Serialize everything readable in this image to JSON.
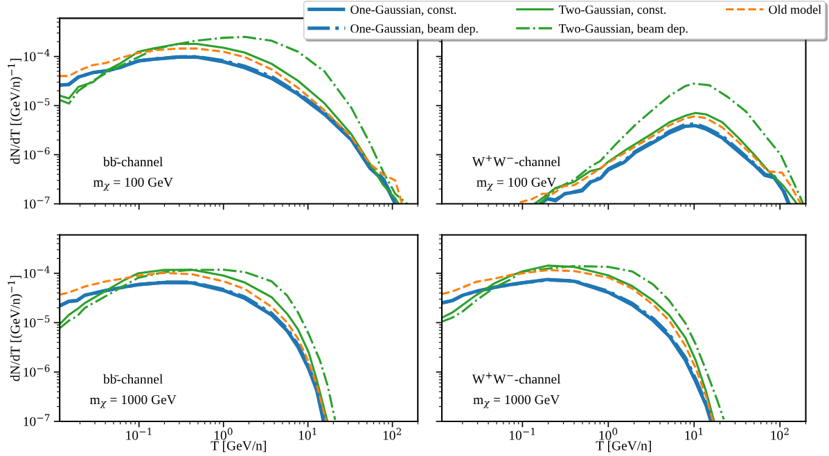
{
  "chart_data": [
    {
      "type": "line",
      "log": "xy",
      "xlim": [
        0.0115,
        200
      ],
      "ylim": [
        1e-07,
        0.0006
      ],
      "tick_labels": "y",
      "legend": "top right",
      "ylabel": "dN/dT [(GeV/n)$^{−1}$]",
      "xticks": [
        {
          "value": 0.1,
          "label": null
        },
        {
          "value": 1,
          "label": null
        },
        {
          "value": 10,
          "label": null
        },
        {
          "value": 100,
          "label": null
        }
      ],
      "yticks": [
        {
          "value": 1e-07,
          "label": "10$^{−7}$"
        },
        {
          "value": 1e-06,
          "label": "10$^{−6}$"
        },
        {
          "value": 1e-05,
          "label": "10$^{−5}$"
        },
        {
          "value": 0.0001,
          "label": "10$^{−4}$"
        }
      ],
      "annotations": [
        "bb̄-channel",
        "m$_{χ}$ = 100 GeV"
      ],
      "series": [
        {
          "name": "One-Gaussian, const.",
          "color": "#1f77b4",
          "line_style": "solid",
          "x": [
            0.0115,
            0.0148,
            0.0191,
            0.0285,
            0.0409,
            0.0589,
            0.0787,
            0.098,
            0.151,
            0.291,
            0.484,
            1.0,
            1.79,
            3.7,
            7.64,
            15.8,
            32.7,
            54.3,
            78.2,
            108
          ],
          "values": [
            2.6e-05,
            2.7e-05,
            3.8e-05,
            4.7e-05,
            5.1e-05,
            5.9e-05,
            7.1e-05,
            8.1e-05,
            8.8e-05,
            9.7e-05,
            9.7e-05,
            7.8e-05,
            5.9e-05,
            3.6e-05,
            1.7e-05,
            6.6e-06,
            2e-06,
            5.3e-07,
            3e-07,
            1e-07
          ]
        },
        {
          "name": "One-Gaussian, beam dep.",
          "color": "#1f77b4",
          "line_style": "dashdot",
          "x": [
            0.0115,
            0.0148,
            0.0191,
            0.0285,
            0.0409,
            0.0589,
            0.0787,
            0.098,
            0.151,
            0.291,
            0.484,
            1.0,
            1.79,
            3.7,
            7.64,
            15.8,
            32.7,
            54.3,
            78.2,
            110
          ],
          "values": [
            2.6e-05,
            2.7e-05,
            3.8e-05,
            4.7e-05,
            5.1e-05,
            5.9e-05,
            7.1e-05,
            8.1e-05,
            8.9e-05,
            9.8e-05,
            9.9e-05,
            8.2e-05,
            6.3e-05,
            3.9e-05,
            1.8e-05,
            7.1e-06,
            2.2e-06,
            5.8e-07,
            3.2e-07,
            1e-07
          ]
        },
        {
          "name": "Two-Gaussian, const.",
          "color": "#2ca02c",
          "line_style": "solid",
          "x": [
            0.0115,
            0.0148,
            0.0191,
            0.0285,
            0.0409,
            0.0589,
            0.098,
            0.151,
            0.291,
            0.484,
            1.0,
            1.79,
            3.7,
            7.64,
            15.8,
            32.7,
            54.3,
            78.2,
            108,
            118
          ],
          "values": [
            1.6e-05,
            1.4e-05,
            2.4e-05,
            3e-05,
            5.1e-05,
            7.1e-05,
            0.000125,
            0.000147,
            0.00018,
            0.00018,
            0.00015,
            0.00012,
            7.1e-05,
            3.2e-05,
            1.1e-05,
            2.6e-06,
            6.5e-07,
            2.4e-07,
            1.3e-07,
            1e-07
          ]
        },
        {
          "name": "Two-Gaussian, beam dep.",
          "color": "#2ca02c",
          "line_style": "dashdot",
          "x": [
            0.0115,
            0.0148,
            0.0191,
            0.0285,
            0.0409,
            0.0589,
            0.098,
            0.151,
            0.291,
            0.484,
            1.0,
            1.79,
            3.7,
            7.64,
            15.8,
            32.7,
            54.3,
            78.2,
            108,
            150
          ],
          "values": [
            1.3e-05,
            1.1e-05,
            2e-05,
            3.2e-05,
            4.6e-05,
            6.3e-05,
            9.7e-05,
            0.00014,
            0.00018,
            0.00021,
            0.00024,
            0.00025,
            0.00021,
            0.000125,
            4.9e-05,
            9e-06,
            1.7e-06,
            4.4e-07,
            1.6e-07,
            1e-07
          ]
        },
        {
          "name": "Old model",
          "color": "#ff7f0e",
          "line_style": "dashed",
          "x": [
            0.0115,
            0.0148,
            0.0191,
            0.0285,
            0.0409,
            0.0589,
            0.098,
            0.151,
            0.291,
            0.484,
            1.0,
            1.79,
            3.7,
            7.64,
            15.8,
            32.7,
            54.3,
            78.2,
            108,
            130
          ],
          "values": [
            4e-05,
            4e-05,
            5.1e-05,
            6.7e-05,
            7.4e-05,
            9.2e-05,
            0.000118,
            0.000133,
            0.000145,
            0.000145,
            0.000125,
            9.7e-05,
            5.5e-05,
            2.3e-05,
            7.9e-06,
            2.3e-06,
            6.5e-07,
            3.9e-07,
            3e-07,
            1e-07
          ]
        }
      ]
    },
    {
      "type": "line",
      "log": "xy",
      "xlim": [
        0.0115,
        200
      ],
      "ylim": [
        1e-07,
        0.0006
      ],
      "tick_labels": false,
      "xticks": [
        {
          "value": 0.1,
          "label": null
        },
        {
          "value": 1,
          "label": null
        },
        {
          "value": 10,
          "label": null
        },
        {
          "value": 100,
          "label": null
        }
      ],
      "yticks": [
        {
          "value": 1e-07,
          "label": null
        },
        {
          "value": 1e-06,
          "label": null
        },
        {
          "value": 1e-05,
          "label": null
        },
        {
          "value": 0.0001,
          "label": null
        }
      ],
      "annotations": [
        "W$^{+}$W$^{−}$-channel",
        "m$_{χ}$ = 100 GeV"
      ],
      "series": [
        {
          "color": "#1f77b4",
          "line_style": "solid",
          "x": [
            0.159,
            0.196,
            0.243,
            0.311,
            0.495,
            0.63,
            0.81,
            1.0,
            1.54,
            2.05,
            3.37,
            5.2,
            7.9,
            10.4,
            13.9,
            21.3,
            32.9,
            50.1,
            66.7,
            85.7,
            110,
            126
          ],
          "values": [
            1e-07,
            1.27e-07,
            1.16e-07,
            1.6e-07,
            1.84e-07,
            2.8e-07,
            3.3e-07,
            4.9e-07,
            7.1e-07,
            1.1e-06,
            1.8e-06,
            2.8e-06,
            3.8e-06,
            3.9e-06,
            3.3e-06,
            2.2e-06,
            1.16e-06,
            6.2e-07,
            3.8e-07,
            3.4e-07,
            1.8e-07,
            1e-07
          ]
        },
        {
          "color": "#1f77b4",
          "line_style": "dashdot",
          "x": [
            0.159,
            0.196,
            0.243,
            0.311,
            0.495,
            0.63,
            0.81,
            1.0,
            1.54,
            2.05,
            3.37,
            5.2,
            7.9,
            10.4,
            13.9,
            21.3,
            32.9,
            50.1,
            66.7,
            85.7,
            110,
            128
          ],
          "values": [
            1e-07,
            1.27e-07,
            1.2e-07,
            1.6e-07,
            1.9e-07,
            2.9e-07,
            3.4e-07,
            5.1e-07,
            7.5e-07,
            1.15e-06,
            1.9e-06,
            3e-06,
            4.1e-06,
            4.2e-06,
            3.5e-06,
            2.4e-06,
            1.25e-06,
            6.6e-07,
            4e-07,
            3.6e-07,
            1.9e-07,
            1e-07
          ]
        },
        {
          "color": "#2ca02c",
          "line_style": "solid",
          "x": [
            0.138,
            0.17,
            0.243,
            0.4,
            0.61,
            0.81,
            1.0,
            1.65,
            3.37,
            5.2,
            7.9,
            10.4,
            13.9,
            21.3,
            32.9,
            50.1,
            71.5,
            110,
            158
          ],
          "values": [
            1e-07,
            1.3e-07,
            2.1e-07,
            2.8e-07,
            4.6e-07,
            5.2e-07,
            7.2e-07,
            1.3e-06,
            2.8e-06,
            4.6e-06,
            6.2e-06,
            7.1e-06,
            6.6e-06,
            4.6e-06,
            2.2e-06,
            1e-06,
            4.9e-07,
            2.3e-07,
            1e-07
          ]
        },
        {
          "color": "#2ca02c",
          "line_style": "dashdot",
          "x": [
            0.159,
            0.243,
            0.4,
            0.61,
            0.81,
            1.25,
            2.05,
            3.37,
            5.2,
            7.9,
            10,
            15,
            24.6,
            40.5,
            66.7,
            102,
            146,
            187
          ],
          "values": [
            1e-07,
            2e-07,
            3.1e-07,
            5.6e-07,
            7.5e-07,
            1.7e-06,
            4e-06,
            8.5e-06,
            1.6e-05,
            2.5e-05,
            2.8e-05,
            2.6e-05,
            1.5e-05,
            7.5e-06,
            2.5e-06,
            1e-06,
            2.6e-07,
            1e-07
          ]
        },
        {
          "color": "#ff7f0e",
          "line_style": "dashed",
          "x": [
            0.093,
            0.128,
            0.17,
            0.226,
            0.3,
            0.4,
            0.61,
            1.0,
            1.65,
            3.37,
            5.2,
            7.9,
            10.4,
            13.9,
            21.3,
            32.9,
            50.1,
            71.5,
            106,
            136,
            175
          ],
          "values": [
            1.07e-07,
            1.24e-07,
            1.6e-07,
            1.6e-07,
            2.3e-07,
            2.4e-07,
            3.8e-07,
            6.9e-07,
            1.16e-06,
            2.45e-06,
            4e-06,
            5.5e-06,
            6.1e-06,
            5.5e-06,
            3.6e-06,
            1.8e-06,
            9e-07,
            4.6e-07,
            4.3e-07,
            2.2e-07,
            1e-07
          ]
        }
      ]
    },
    {
      "type": "line",
      "log": "xy",
      "xlim": [
        0.0115,
        200
      ],
      "ylim": [
        1e-07,
        0.0006
      ],
      "xlabel": "T [GeV/n]",
      "ylabel": "dN/dT [(GeV/n)$^{−1}$]",
      "xticks": [
        {
          "value": 0.1,
          "label": "10$^{−1}$"
        },
        {
          "value": 1,
          "label": "10$^{0}$"
        },
        {
          "value": 10,
          "label": "10$^{1}$"
        },
        {
          "value": 100,
          "label": "10$^{2}$"
        }
      ],
      "yticks": [
        {
          "value": 1e-07,
          "label": "10$^{−7}$"
        },
        {
          "value": 1e-06,
          "label": "10$^{−6}$"
        },
        {
          "value": 1e-05,
          "label": "10$^{−5}$"
        },
        {
          "value": 0.0001,
          "label": "10$^{−4}$"
        }
      ],
      "annotations": [
        "bb̄-channel",
        "m$_{χ}$ = 1000 GeV"
      ],
      "series": [
        {
          "color": "#1f77b4",
          "line_style": "solid",
          "x": [
            0.0115,
            0.0148,
            0.0184,
            0.0229,
            0.041,
            0.068,
            0.098,
            0.2,
            0.42,
            1.0,
            1.79,
            3.7,
            5.7,
            7.64,
            10.2,
            12.7,
            15.3
          ],
          "values": [
            2.2e-05,
            2.7e-05,
            2.8e-05,
            3.6e-05,
            4.5e-05,
            5.3e-05,
            5.9e-05,
            6.5e-05,
            6.4e-05,
            4.5e-05,
            3.1e-05,
            1.44e-05,
            6.8e-06,
            3.2e-06,
            1.17e-06,
            4.3e-07,
            1e-07
          ]
        },
        {
          "color": "#1f77b4",
          "line_style": "dashdot",
          "x": [
            0.0115,
            0.0148,
            0.0184,
            0.0229,
            0.041,
            0.068,
            0.098,
            0.2,
            0.42,
            1.0,
            1.79,
            3.7,
            5.7,
            7.64,
            10.2,
            12.7,
            15.6
          ],
          "values": [
            2.2e-05,
            2.7e-05,
            2.8e-05,
            3.6e-05,
            4.5e-05,
            5.3e-05,
            5.9e-05,
            6.6e-05,
            6.6e-05,
            4.7e-05,
            3.3e-05,
            1.55e-05,
            7.4e-06,
            3.5e-06,
            1.3e-06,
            4.8e-07,
            1e-07
          ]
        },
        {
          "color": "#2ca02c",
          "line_style": "solid",
          "x": [
            0.0115,
            0.0148,
            0.0184,
            0.0229,
            0.041,
            0.068,
            0.098,
            0.2,
            0.42,
            1.0,
            1.79,
            3.7,
            5.7,
            7.64,
            10.2,
            12.7,
            17.0
          ],
          "values": [
            9.3e-06,
            1.44e-05,
            1.86e-05,
            2.5e-05,
            4.5e-05,
            7.4e-05,
            0.0001,
            0.000117,
            0.000118,
            9e-05,
            6.5e-05,
            3.3e-05,
            1.5e-05,
            7.3e-06,
            2.5e-06,
            7e-07,
            1e-07
          ]
        },
        {
          "color": "#2ca02c",
          "line_style": "dashdot",
          "x": [
            0.0115,
            0.0148,
            0.0184,
            0.0229,
            0.041,
            0.068,
            0.098,
            0.2,
            0.42,
            1.0,
            1.79,
            3.7,
            5.7,
            7.64,
            10.2,
            13.9,
            17.0,
            21.0
          ],
          "values": [
            7.7e-06,
            1.1e-05,
            1.34e-05,
            2e-05,
            3.5e-05,
            5.7e-05,
            8.1e-05,
            0.000106,
            0.000117,
            0.000118,
            0.000106,
            6.9e-05,
            3.5e-05,
            1.6e-05,
            5.9e-06,
            1.7e-06,
            5.5e-07,
            1.07e-07
          ]
        },
        {
          "color": "#ff7f0e",
          "line_style": "dashed",
          "x": [
            0.0115,
            0.0148,
            0.0229,
            0.041,
            0.068,
            0.098,
            0.2,
            0.42,
            1.0,
            1.79,
            3.7,
            5.7,
            7.64,
            10.2,
            12.7,
            16.5
          ],
          "values": [
            3.7e-05,
            4.1e-05,
            5.4e-05,
            6.9e-05,
            7.9e-05,
            9e-05,
            0.000102,
            9.6e-05,
            6.9e-05,
            4.8e-05,
            2.1e-05,
            1e-05,
            4.7e-06,
            1.6e-06,
            5.5e-07,
            1e-07
          ]
        }
      ]
    },
    {
      "type": "line",
      "log": "xy",
      "xlim": [
        0.0115,
        200
      ],
      "ylim": [
        1e-07,
        0.0006
      ],
      "tick_labels": "x",
      "xlabel": "T [GeV/n]",
      "xticks": [
        {
          "value": 0.1,
          "label": "10$^{−1}$"
        },
        {
          "value": 1,
          "label": "10$^{0}$"
        },
        {
          "value": 10,
          "label": "10$^{1}$"
        },
        {
          "value": 100,
          "label": "10$^{2}$"
        }
      ],
      "yticks": [
        {
          "value": 1e-07,
          "label": null
        },
        {
          "value": 1e-06,
          "label": null
        },
        {
          "value": 1e-05,
          "label": null
        },
        {
          "value": 0.0001,
          "label": null
        }
      ],
      "annotations": [
        "W$^{+}$W$^{−}$-channel",
        "m$_{χ}$ = 1000 GeV"
      ],
      "series": [
        {
          "color": "#1f77b4",
          "line_style": "solid",
          "x": [
            0.0115,
            0.0152,
            0.0202,
            0.0288,
            0.0474,
            0.0726,
            0.1,
            0.196,
            0.4,
            1.0,
            1.9,
            3.35,
            5.13,
            7.9,
            10.4,
            13.8,
            15.7
          ],
          "values": [
            2.5e-05,
            2.8e-05,
            3.6e-05,
            4.3e-05,
            5.2e-05,
            5.9e-05,
            6.4e-05,
            7.5e-05,
            6.9e-05,
            4.1e-05,
            2.3e-05,
            1.1e-05,
            5.3e-06,
            1.75e-06,
            6.5e-07,
            2.1e-07,
            1e-07
          ]
        },
        {
          "color": "#1f77b4",
          "line_style": "dashdot",
          "x": [
            0.0115,
            0.0152,
            0.0202,
            0.0288,
            0.0474,
            0.0726,
            0.1,
            0.196,
            0.4,
            1.0,
            1.9,
            3.35,
            5.13,
            7.9,
            10.4,
            13.8,
            16.0
          ],
          "values": [
            2.5e-05,
            2.8e-05,
            3.6e-05,
            4.3e-05,
            5.2e-05,
            5.9e-05,
            6.4e-05,
            7.4e-05,
            7e-05,
            4.3e-05,
            2.45e-05,
            1.2e-05,
            5.8e-06,
            1.95e-06,
            7.2e-07,
            2.3e-07,
            1e-07
          ]
        },
        {
          "color": "#2ca02c",
          "line_style": "solid",
          "x": [
            0.0115,
            0.0152,
            0.0202,
            0.0288,
            0.0474,
            0.0726,
            0.1,
            0.196,
            0.4,
            1.0,
            1.9,
            3.35,
            5.13,
            7.9,
            10.4,
            13.8,
            17.1
          ],
          "values": [
            1.26e-05,
            1.6e-05,
            2.3e-05,
            3.6e-05,
            6.3e-05,
            8.9e-05,
            0.000109,
            0.000143,
            0.000135,
            9.1e-05,
            5.5e-05,
            2.8e-05,
            1.42e-05,
            5e-06,
            1.75e-06,
            4e-07,
            1e-07
          ]
        },
        {
          "color": "#2ca02c",
          "line_style": "dashdot",
          "x": [
            0.0115,
            0.0152,
            0.0202,
            0.0288,
            0.0474,
            0.0726,
            0.1,
            0.196,
            0.4,
            1.0,
            1.9,
            3.35,
            5.13,
            7.9,
            10.4,
            13.8,
            18.5,
            22.2
          ],
          "values": [
            1.05e-05,
            1.26e-05,
            1.7e-05,
            2.8e-05,
            5.2e-05,
            7.5e-05,
            0.000108,
            0.000124,
            0.00014,
            0.000135,
            0.000109,
            5.9e-05,
            2.8e-05,
            9.8e-06,
            3.7e-06,
            1.07e-06,
            2.75e-07,
            1.09e-07
          ]
        },
        {
          "color": "#ff7f0e",
          "line_style": "dashed",
          "x": [
            0.0115,
            0.0152,
            0.0202,
            0.0288,
            0.0474,
            0.0726,
            0.1,
            0.196,
            0.4,
            1.0,
            1.9,
            3.35,
            5.13,
            7.9,
            10.4,
            13.8,
            16.6
          ],
          "values": [
            3.8e-05,
            4.3e-05,
            5.2e-05,
            6.7e-05,
            7.8e-05,
            9.3e-05,
            0.0001,
            0.000116,
            0.000111,
            8.2e-05,
            4.9e-05,
            2.3e-05,
            1.1e-05,
            3.4e-06,
            1.2e-06,
            3.2e-07,
            1e-07
          ]
        }
      ]
    }
  ]
}
